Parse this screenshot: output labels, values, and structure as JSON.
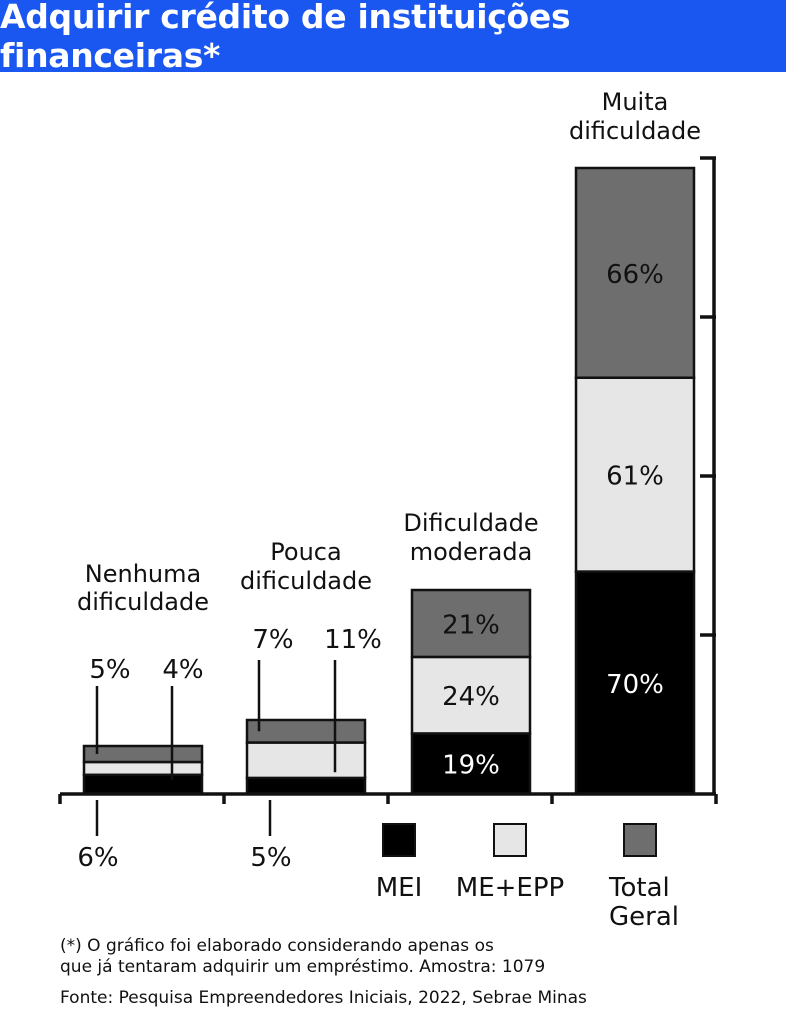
{
  "title": "Adquirir crédito de instituições financeiras*",
  "chart_data": {
    "type": "bar",
    "stacked": true,
    "categories": [
      [
        "Nenhuma",
        "dificuldade"
      ],
      [
        "Pouca",
        "dificuldade"
      ],
      [
        "Dificuldade",
        "moderada"
      ],
      [
        "Muita",
        "dificuldade"
      ]
    ],
    "series": [
      {
        "name": "MEI",
        "color": "#000000",
        "values": [
          6,
          5,
          19,
          70
        ],
        "labels": [
          "6%",
          "5%",
          "19%",
          "70%"
        ]
      },
      {
        "name": "ME+EPP",
        "color": "#e6e6e6",
        "values": [
          4,
          11,
          24,
          61
        ],
        "labels": [
          "4%",
          "11%",
          "24%",
          "61%"
        ]
      },
      {
        "name": "Total Geral",
        "color": "#6e6e6e",
        "values": [
          5,
          7,
          21,
          66
        ],
        "labels": [
          "5%",
          "7%",
          "21%",
          "66%"
        ]
      }
    ],
    "legend": [
      {
        "name": "MEI",
        "lines": [
          "MEI"
        ],
        "color": "#000000"
      },
      {
        "name": "ME+EPP",
        "lines": [
          "ME+EPP"
        ],
        "color": "#e6e6e6"
      },
      {
        "name": "Total Geral",
        "lines": [
          "Total",
          "Geral"
        ],
        "color": "#6e6e6e"
      }
    ],
    "legend_position": "bottom-right"
  },
  "footnote": [
    "(*) O gráfico foi elaborado considerando apenas os",
    "que já tentaram adquirir um empréstimo. Amostra: 1079"
  ],
  "source": "Fonte: Pesquisa Empreendedores Iniciais, 2022, Sebrae Minas"
}
